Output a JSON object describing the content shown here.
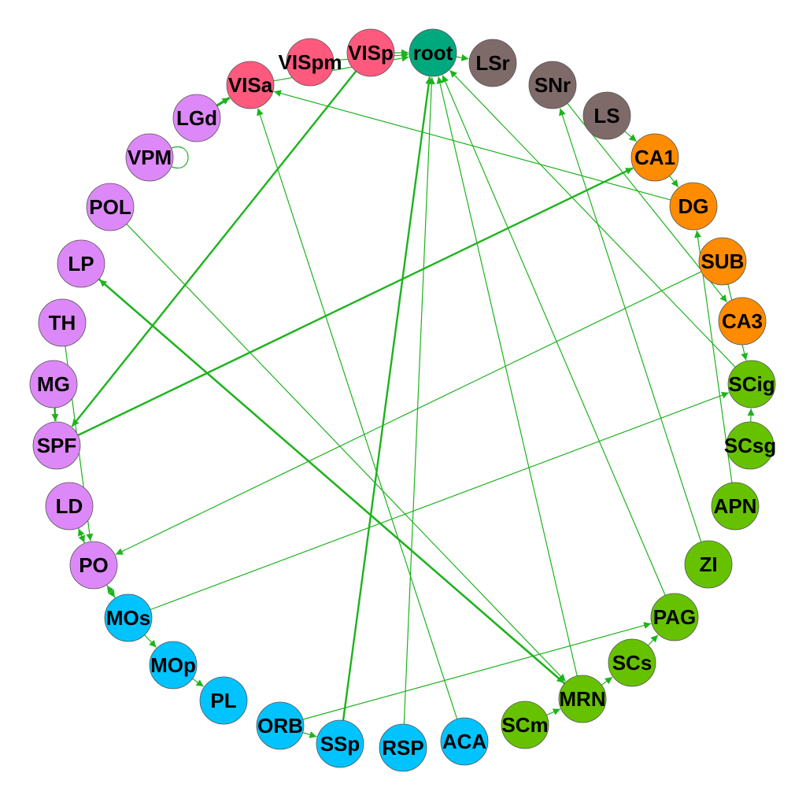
{
  "graph": {
    "group_colors": {
      "root": "#00a87e",
      "visual": "#ff5a7e",
      "lateral": "#7f6a6a",
      "hippo": "#ff8c00",
      "midbrain": "#66c200",
      "thalamus": "#dd88f8",
      "cortex": "#00c3ff"
    },
    "edge_color": "#1db31d",
    "nodes": [
      {
        "id": "root",
        "label": "root",
        "group": "root"
      },
      {
        "id": "LSr",
        "label": "LSr",
        "group": "lateral"
      },
      {
        "id": "SNr",
        "label": "SNr",
        "group": "lateral"
      },
      {
        "id": "LS",
        "label": "LS",
        "group": "lateral"
      },
      {
        "id": "CA1",
        "label": "CA1",
        "group": "hippo"
      },
      {
        "id": "DG",
        "label": "DG",
        "group": "hippo"
      },
      {
        "id": "SUB",
        "label": "SUB",
        "group": "hippo"
      },
      {
        "id": "CA3",
        "label": "CA3",
        "group": "hippo"
      },
      {
        "id": "SCig",
        "label": "SCig",
        "group": "midbrain"
      },
      {
        "id": "SCsg",
        "label": "SCsg",
        "group": "midbrain"
      },
      {
        "id": "APN",
        "label": "APN",
        "group": "midbrain"
      },
      {
        "id": "ZI",
        "label": "ZI",
        "group": "midbrain"
      },
      {
        "id": "PAG",
        "label": "PAG",
        "group": "midbrain"
      },
      {
        "id": "SCs",
        "label": "SCs",
        "group": "midbrain"
      },
      {
        "id": "MRN",
        "label": "MRN",
        "group": "midbrain"
      },
      {
        "id": "SCm",
        "label": "SCm",
        "group": "midbrain"
      },
      {
        "id": "ACA",
        "label": "ACA",
        "group": "cortex"
      },
      {
        "id": "RSP",
        "label": "RSP",
        "group": "cortex"
      },
      {
        "id": "SSp",
        "label": "SSp",
        "group": "cortex"
      },
      {
        "id": "ORB",
        "label": "ORB",
        "group": "cortex"
      },
      {
        "id": "PL",
        "label": "PL",
        "group": "cortex"
      },
      {
        "id": "MOp",
        "label": "MOp",
        "group": "cortex"
      },
      {
        "id": "MOs",
        "label": "MOs",
        "group": "cortex"
      },
      {
        "id": "PO",
        "label": "PO",
        "group": "thalamus"
      },
      {
        "id": "LD",
        "label": "LD",
        "group": "thalamus"
      },
      {
        "id": "SPF",
        "label": "SPF",
        "group": "thalamus"
      },
      {
        "id": "MG",
        "label": "MG",
        "group": "thalamus"
      },
      {
        "id": "TH",
        "label": "TH",
        "group": "thalamus"
      },
      {
        "id": "LP",
        "label": "LP",
        "group": "thalamus"
      },
      {
        "id": "POL",
        "label": "POL",
        "group": "thalamus"
      },
      {
        "id": "VPM",
        "label": "VPM",
        "group": "thalamus"
      },
      {
        "id": "LGd",
        "label": "LGd",
        "group": "thalamus"
      },
      {
        "id": "VISa",
        "label": "VISa",
        "group": "visual"
      },
      {
        "id": "VISpm",
        "label": "VISpm",
        "group": "visual"
      },
      {
        "id": "VISp",
        "label": "VISp",
        "group": "visual"
      }
    ],
    "edges": [
      {
        "source": "VISp",
        "target": "root",
        "weight": 1
      },
      {
        "source": "root",
        "target": "LSr",
        "weight": 1
      },
      {
        "source": "VISpm",
        "target": "root",
        "weight": 1
      },
      {
        "source": "VISa",
        "target": "root",
        "weight": 1
      },
      {
        "source": "LGd",
        "target": "VISa",
        "weight": 3
      },
      {
        "source": "VPM",
        "target": "VPM",
        "weight": 1
      },
      {
        "source": "VISp",
        "target": "SPF",
        "weight": 2
      },
      {
        "source": "MG",
        "target": "SPF",
        "weight": 2
      },
      {
        "source": "SPF",
        "target": "CA1",
        "weight": 2
      },
      {
        "source": "DG",
        "target": "VISa",
        "weight": 1
      },
      {
        "source": "CA1",
        "target": "DG",
        "weight": 1
      },
      {
        "source": "LS",
        "target": "CA1",
        "weight": 1
      },
      {
        "source": "SNr",
        "target": "CA3",
        "weight": 1
      },
      {
        "source": "SUB",
        "target": "SCig",
        "weight": 1
      },
      {
        "source": "SCsg",
        "target": "SCig",
        "weight": 1
      },
      {
        "source": "APN",
        "target": "DG",
        "weight": 1
      },
      {
        "source": "ZI",
        "target": "SNr",
        "weight": 1
      },
      {
        "source": "SCig",
        "target": "root",
        "weight": 1
      },
      {
        "source": "MOs",
        "target": "SCig",
        "weight": 1
      },
      {
        "source": "SUB",
        "target": "PO",
        "weight": 1
      },
      {
        "source": "LP",
        "target": "MRN",
        "weight": 2
      },
      {
        "source": "MRN",
        "target": "LP",
        "weight": 2
      },
      {
        "source": "MRN",
        "target": "root",
        "weight": 1
      },
      {
        "source": "PAG",
        "target": "root",
        "weight": 1
      },
      {
        "source": "ORB",
        "target": "PAG",
        "weight": 1
      },
      {
        "source": "SCs",
        "target": "PAG",
        "weight": 1
      },
      {
        "source": "MRN",
        "target": "SCs",
        "weight": 1
      },
      {
        "source": "SCm",
        "target": "MRN",
        "weight": 1
      },
      {
        "source": "SSp",
        "target": "root",
        "weight": 2
      },
      {
        "source": "RSP",
        "target": "root",
        "weight": 1
      },
      {
        "source": "ACA",
        "target": "VISa",
        "weight": 1
      },
      {
        "source": "POL",
        "target": "MRN",
        "weight": 1
      },
      {
        "source": "TH",
        "target": "PO",
        "weight": 1
      },
      {
        "source": "LD",
        "target": "PO",
        "weight": 1
      },
      {
        "source": "PO",
        "target": "LD",
        "weight": 1
      },
      {
        "source": "PO",
        "target": "MOs",
        "weight": 1
      },
      {
        "source": "MOs",
        "target": "PO",
        "weight": 1
      },
      {
        "source": "MOs",
        "target": "MOp",
        "weight": 1
      },
      {
        "source": "MOp",
        "target": "PL",
        "weight": 1
      },
      {
        "source": "ORB",
        "target": "SSp",
        "weight": 1
      }
    ]
  }
}
